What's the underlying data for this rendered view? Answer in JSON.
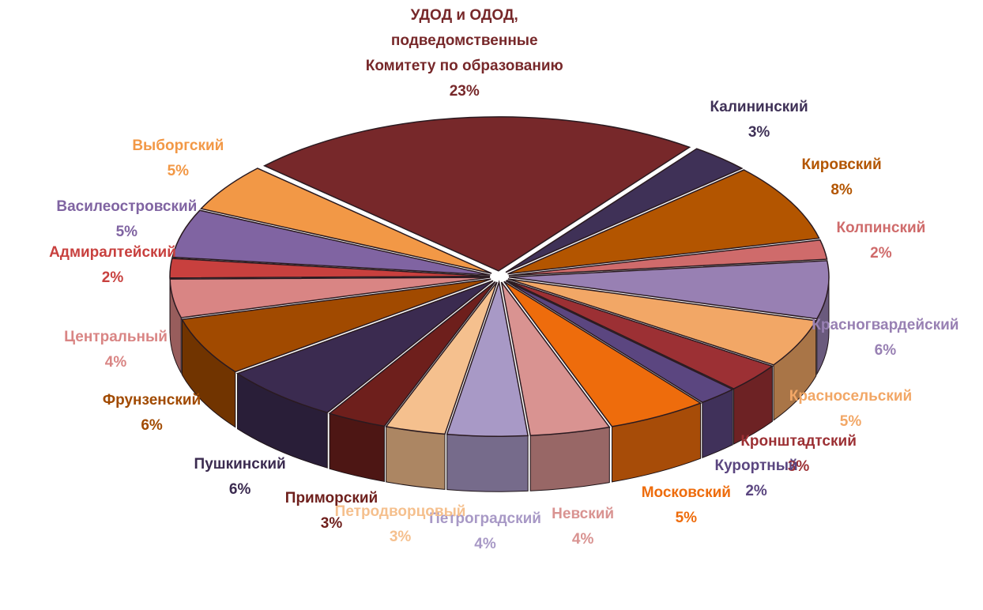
{
  "chart_data": {
    "type": "pie",
    "categories": [
      "УДОД и ОДОД, подведомственные Комитету по образованию",
      "Калининский",
      "Кировский",
      "Колпинский",
      "Красногвардейский",
      "Красносельский",
      "Кронштадтский",
      "Курортный",
      "Московский",
      "Невский",
      "Петроградский",
      "Петродворцовый",
      "Приморский",
      "Пушкинский",
      "Фрунзенский",
      "Центральный",
      "Адмиралтейский",
      "Василеостровский",
      "Выборгский"
    ],
    "values": [
      23,
      3,
      8,
      2,
      6,
      5,
      3,
      2,
      5,
      4,
      4,
      3,
      3,
      6,
      6,
      4,
      2,
      5,
      5
    ],
    "value_labels": [
      "23%",
      "3%",
      "8%",
      "2%",
      "6%",
      "5%",
      "3%",
      "2%",
      "5%",
      "4%",
      "4%",
      "3%",
      "3%",
      "6%",
      "6%",
      "4%",
      "2%",
      "5%",
      "5%"
    ],
    "colors": [
      "#77282a",
      "#3f3157",
      "#b35500",
      "#cf6b6b",
      "#9880b3",
      "#f2a766",
      "#9c3034",
      "#5b4680",
      "#ee6c0c",
      "#d99391",
      "#a899c6",
      "#f5c08e",
      "#6e1f1c",
      "#3b2b50",
      "#a14a00",
      "#d98584",
      "#c8403e",
      "#8064a2",
      "#f29846"
    ]
  }
}
